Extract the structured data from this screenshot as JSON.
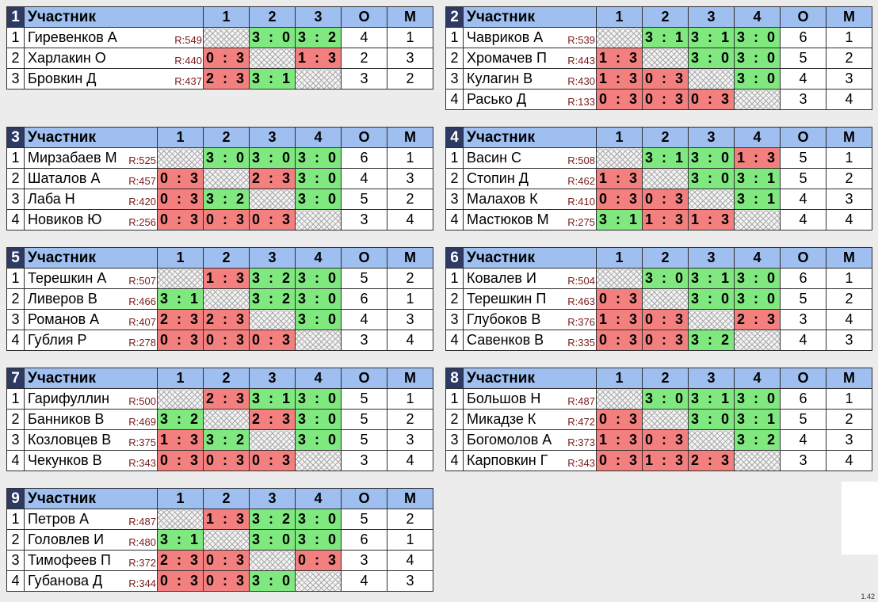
{
  "header": {
    "participant": "Участник",
    "points": "О",
    "place": "М"
  },
  "version": "1.42",
  "colors": {
    "win": "#7fe87f",
    "loss": "#f47f7f",
    "header": "#9fbff0",
    "group_number": "#2d3a63"
  },
  "groups": [
    {
      "number": "1",
      "players": [
        {
          "n": "1",
          "name": "Гиревенков А",
          "rating": "R:549",
          "scores": [
            null,
            "3 : 0",
            "3 : 2"
          ],
          "points": "4",
          "place": "1"
        },
        {
          "n": "2",
          "name": "Харлакин О",
          "rating": "R:440",
          "scores": [
            "0 : 3",
            null,
            "1 : 3"
          ],
          "points": "2",
          "place": "3"
        },
        {
          "n": "3",
          "name": "Бровкин Д",
          "rating": "R:437",
          "scores": [
            "2 : 3",
            "3 : 1",
            null
          ],
          "points": "3",
          "place": "2"
        }
      ]
    },
    {
      "number": "2",
      "players": [
        {
          "n": "1",
          "name": "Чавриков А",
          "rating": "R:539",
          "scores": [
            null,
            "3 : 1",
            "3 : 1",
            "3 : 0"
          ],
          "points": "6",
          "place": "1"
        },
        {
          "n": "2",
          "name": "Хромачев П",
          "rating": "R:443",
          "scores": [
            "1 : 3",
            null,
            "3 : 0",
            "3 : 0"
          ],
          "points": "5",
          "place": "2"
        },
        {
          "n": "3",
          "name": "Кулагин В",
          "rating": "R:430",
          "scores": [
            "1 : 3",
            "0 : 3",
            null,
            "3 : 0"
          ],
          "points": "4",
          "place": "3"
        },
        {
          "n": "4",
          "name": "Расько Д",
          "rating": "R:133",
          "scores": [
            "0 : 3",
            "0 : 3",
            "0 : 3",
            null
          ],
          "points": "3",
          "place": "4"
        }
      ]
    },
    {
      "number": "3",
      "players": [
        {
          "n": "1",
          "name": "Мирзабаев М",
          "rating": "R:525",
          "scores": [
            null,
            "3 : 0",
            "3 : 0",
            "3 : 0"
          ],
          "points": "6",
          "place": "1"
        },
        {
          "n": "2",
          "name": "Шаталов А",
          "rating": "R:457",
          "scores": [
            "0 : 3",
            null,
            "2 : 3",
            "3 : 0"
          ],
          "points": "4",
          "place": "3"
        },
        {
          "n": "3",
          "name": "Лаба Н",
          "rating": "R:420",
          "scores": [
            "0 : 3",
            "3 : 2",
            null,
            "3 : 0"
          ],
          "points": "5",
          "place": "2"
        },
        {
          "n": "4",
          "name": "Новиков Ю",
          "rating": "R:256",
          "scores": [
            "0 : 3",
            "0 : 3",
            "0 : 3",
            null
          ],
          "points": "3",
          "place": "4"
        }
      ]
    },
    {
      "number": "4",
      "players": [
        {
          "n": "1",
          "name": "Васин С",
          "rating": "R:508",
          "scores": [
            null,
            "3 : 1",
            "3 : 0",
            "1 : 3"
          ],
          "points": "5",
          "place": "1"
        },
        {
          "n": "2",
          "name": "Стопин Д",
          "rating": "R:462",
          "scores": [
            "1 : 3",
            null,
            "3 : 0",
            "3 : 1"
          ],
          "points": "5",
          "place": "2"
        },
        {
          "n": "3",
          "name": "Малахов К",
          "rating": "R:410",
          "scores": [
            "0 : 3",
            "0 : 3",
            null,
            "3 : 1"
          ],
          "points": "4",
          "place": "3"
        },
        {
          "n": "4",
          "name": "Мастюков М",
          "rating": "R:275",
          "scores": [
            "3 : 1",
            "1 : 3",
            "1 : 3",
            null
          ],
          "points": "4",
          "place": "4"
        }
      ]
    },
    {
      "number": "5",
      "players": [
        {
          "n": "1",
          "name": "Терешкин А",
          "rating": "R:507",
          "scores": [
            null,
            "1 : 3",
            "3 : 2",
            "3 : 0"
          ],
          "points": "5",
          "place": "2"
        },
        {
          "n": "2",
          "name": "Ливеров В",
          "rating": "R:466",
          "scores": [
            "3 : 1",
            null,
            "3 : 2",
            "3 : 0"
          ],
          "points": "6",
          "place": "1"
        },
        {
          "n": "3",
          "name": "Романов А",
          "rating": "R:407",
          "scores": [
            "2 : 3",
            "2 : 3",
            null,
            "3 : 0"
          ],
          "points": "4",
          "place": "3"
        },
        {
          "n": "4",
          "name": "Гублия Р",
          "rating": "R:278",
          "scores": [
            "0 : 3",
            "0 : 3",
            "0 : 3",
            null
          ],
          "points": "3",
          "place": "4"
        }
      ]
    },
    {
      "number": "6",
      "players": [
        {
          "n": "1",
          "name": "Ковалев И",
          "rating": "R:504",
          "scores": [
            null,
            "3 : 0",
            "3 : 1",
            "3 : 0"
          ],
          "points": "6",
          "place": "1"
        },
        {
          "n": "2",
          "name": "Терешкин П",
          "rating": "R:463",
          "scores": [
            "0 : 3",
            null,
            "3 : 0",
            "3 : 0"
          ],
          "points": "5",
          "place": "2"
        },
        {
          "n": "3",
          "name": "Глубоков В",
          "rating": "R:376",
          "scores": [
            "1 : 3",
            "0 : 3",
            null,
            "2 : 3"
          ],
          "points": "3",
          "place": "4"
        },
        {
          "n": "4",
          "name": "Савенков В",
          "rating": "R:335",
          "scores": [
            "0 : 3",
            "0 : 3",
            "3 : 2",
            null
          ],
          "points": "4",
          "place": "3"
        }
      ]
    },
    {
      "number": "7",
      "players": [
        {
          "n": "1",
          "name": "Гарифуллин",
          "rating": "R:500",
          "scores": [
            null,
            "2 : 3",
            "3 : 1",
            "3 : 0"
          ],
          "points": "5",
          "place": "1"
        },
        {
          "n": "2",
          "name": "Банников В",
          "rating": "R:469",
          "scores": [
            "3 : 2",
            null,
            "2 : 3",
            "3 : 0"
          ],
          "points": "5",
          "place": "2"
        },
        {
          "n": "3",
          "name": "Козловцев В",
          "rating": "R:375",
          "scores": [
            "1 : 3",
            "3 : 2",
            null,
            "3 : 0"
          ],
          "points": "5",
          "place": "3"
        },
        {
          "n": "4",
          "name": "Чекунков В",
          "rating": "R:343",
          "scores": [
            "0 : 3",
            "0 : 3",
            "0 : 3",
            null
          ],
          "points": "3",
          "place": "4"
        }
      ]
    },
    {
      "number": "8",
      "players": [
        {
          "n": "1",
          "name": "Большов Н",
          "rating": "R:487",
          "scores": [
            null,
            "3 : 0",
            "3 : 1",
            "3 : 0"
          ],
          "points": "6",
          "place": "1"
        },
        {
          "n": "2",
          "name": "Микадзе К",
          "rating": "R:472",
          "scores": [
            "0 : 3",
            null,
            "3 : 0",
            "3 : 1"
          ],
          "points": "5",
          "place": "2"
        },
        {
          "n": "3",
          "name": "Богомолов А",
          "rating": "R:373",
          "scores": [
            "1 : 3",
            "0 : 3",
            null,
            "3 : 2"
          ],
          "points": "4",
          "place": "3"
        },
        {
          "n": "4",
          "name": "Карповкин Г",
          "rating": "R:343",
          "scores": [
            "0 : 3",
            "1 : 3",
            "2 : 3",
            null
          ],
          "points": "3",
          "place": "4"
        }
      ]
    },
    {
      "number": "9",
      "players": [
        {
          "n": "1",
          "name": "Петров А",
          "rating": "R:487",
          "scores": [
            null,
            "1 : 3",
            "3 : 2",
            "3 : 0"
          ],
          "points": "5",
          "place": "2"
        },
        {
          "n": "2",
          "name": "Головлев И",
          "rating": "R:480",
          "scores": [
            "3 : 1",
            null,
            "3 : 0",
            "3 : 0"
          ],
          "points": "6",
          "place": "1"
        },
        {
          "n": "3",
          "name": "Тимофеев П",
          "rating": "R:372",
          "scores": [
            "2 : 3",
            "0 : 3",
            null,
            "0 : 3"
          ],
          "points": "3",
          "place": "4"
        },
        {
          "n": "4",
          "name": "Губанова Д",
          "rating": "R:344",
          "scores": [
            "0 : 3",
            "0 : 3",
            "3 : 0",
            null
          ],
          "points": "4",
          "place": "3"
        }
      ]
    }
  ]
}
